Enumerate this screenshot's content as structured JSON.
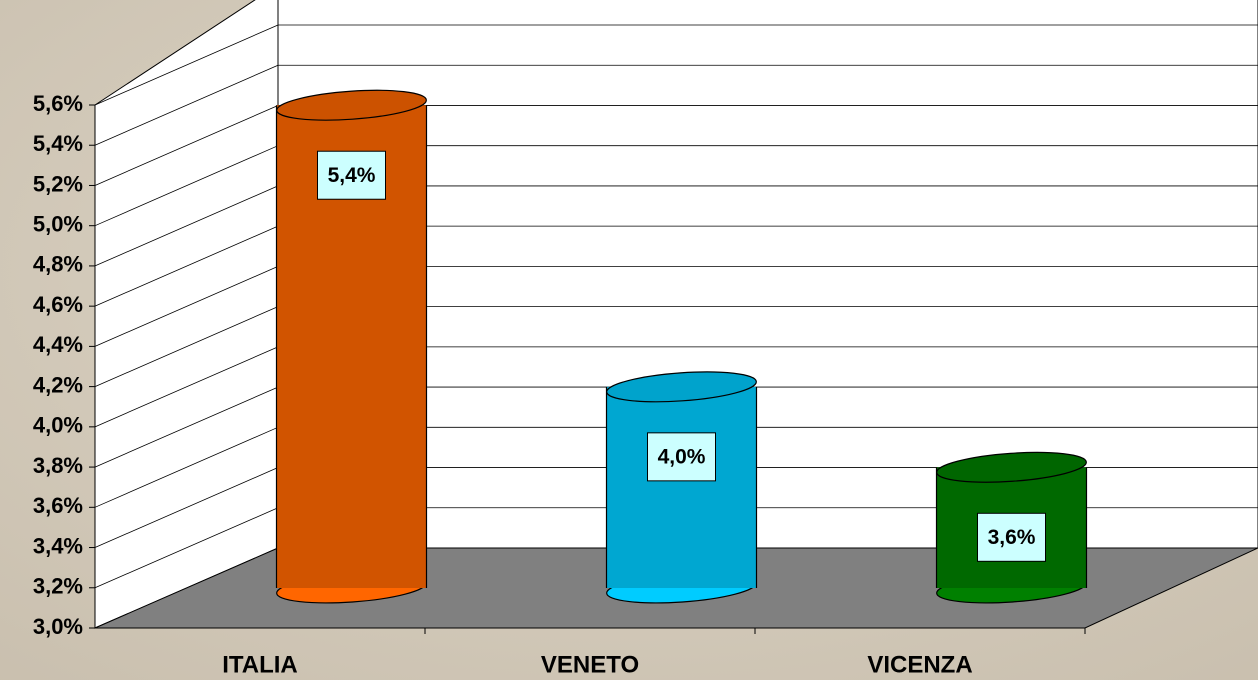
{
  "chart_data": {
    "type": "cylinder",
    "categories": [
      "ITALIA",
      "VENETO",
      "VICENZA"
    ],
    "values": [
      5.4,
      4.0,
      3.6
    ],
    "value_labels": [
      "5,4%",
      "4,0%",
      "3,6%"
    ],
    "colors": [
      "#ff6600",
      "#00ccff",
      "#008000"
    ],
    "ylim": [
      3.0,
      5.6
    ],
    "yticks": [
      {
        "value": 3.0,
        "label": "3,0%"
      },
      {
        "value": 3.2,
        "label": "3,2%"
      },
      {
        "value": 3.4,
        "label": "3,4%"
      },
      {
        "value": 3.6,
        "label": "3,6%"
      },
      {
        "value": 3.8,
        "label": "3,8%"
      },
      {
        "value": 4.0,
        "label": "4,0%"
      },
      {
        "value": 4.2,
        "label": "4,2%"
      },
      {
        "value": 4.4,
        "label": "4,4%"
      },
      {
        "value": 4.6,
        "label": "4,6%"
      },
      {
        "value": 4.8,
        "label": "4,8%"
      },
      {
        "value": 5.0,
        "label": "5,0%"
      },
      {
        "value": 5.2,
        "label": "5,2%"
      },
      {
        "value": 5.4,
        "label": "5,4%"
      },
      {
        "value": 5.6,
        "label": "5,6%"
      }
    ],
    "grid": true
  }
}
